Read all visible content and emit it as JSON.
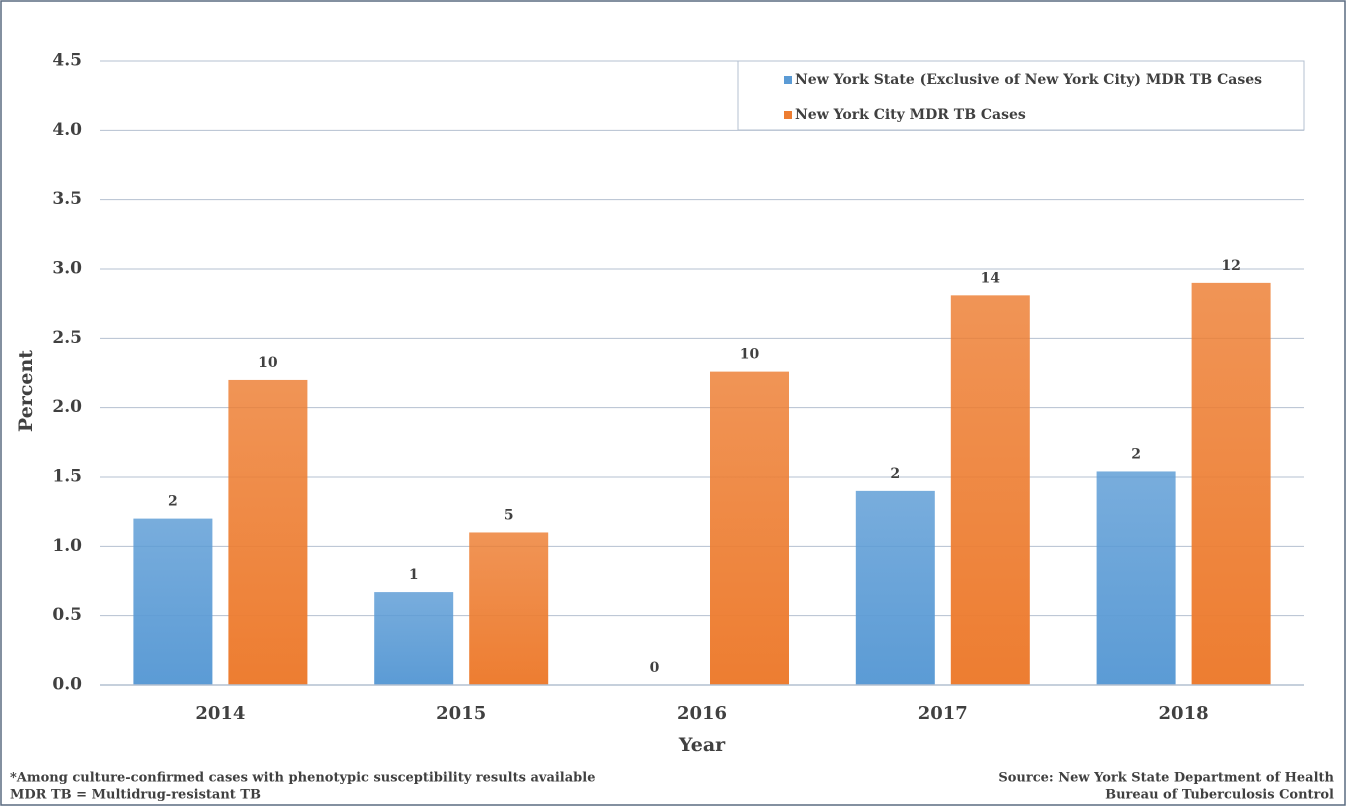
{
  "chart_data": {
    "type": "bar",
    "y_label": "Percent",
    "x_label": "Year",
    "categories": [
      "2014",
      "2015",
      "2016",
      "2017",
      "2018"
    ],
    "series": [
      {
        "name": "New York State (Exclusive of New York City) MDR TB Cases",
        "color": "#5b9bd5",
        "values": [
          1.2,
          0.67,
          0,
          1.4,
          1.54
        ],
        "counts": [
          2,
          1,
          0,
          2,
          2
        ]
      },
      {
        "name": "New York City MDR TB Cases",
        "color": "#ed7d31",
        "values": [
          2.2,
          1.1,
          2.26,
          2.81,
          2.9
        ],
        "counts": [
          10,
          5,
          10,
          14,
          12
        ]
      }
    ],
    "ylim": [
      0,
      4.5
    ],
    "yticks": [
      {
        "value": 0,
        "label": "0.0"
      },
      0.5,
      {
        "value": 1,
        "label": "1.0"
      },
      1.5,
      {
        "value": 2,
        "label": "2.0"
      },
      2.5,
      {
        "value": 3,
        "label": "3.0"
      },
      3.5,
      {
        "value": 4,
        "label": "4.0"
      },
      4.5
    ],
    "grid": true,
    "legend": "top-right",
    "notes": [
      "*Among culture-confirmed cases with phenotypic susceptibility results available",
      "MDR TB = Multidrug-resistant TB"
    ],
    "source": [
      "Source: New York State Department of Health",
      "Bureau of Tuberculosis Control"
    ]
  }
}
